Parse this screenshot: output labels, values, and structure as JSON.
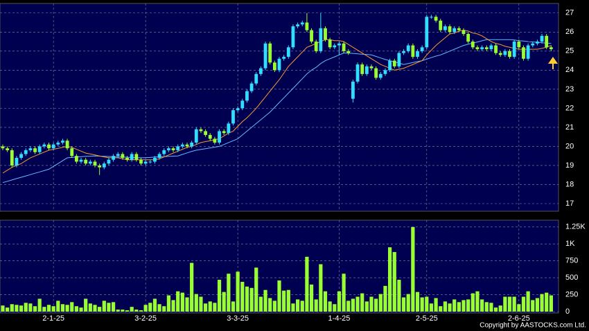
{
  "chart_data": {
    "type": "candlestick",
    "xticks": [
      {
        "value": 11,
        "label": "2-1-25"
      },
      {
        "value": 31,
        "label": "3-2-25"
      },
      {
        "value": 51,
        "label": "3-3-25"
      },
      {
        "value": 73,
        "label": "1-4-25"
      },
      {
        "value": 92,
        "label": "2-5-25"
      },
      {
        "value": 112,
        "label": "2-6-25"
      }
    ],
    "xlim": [
      -0.6,
      120.6
    ],
    "ylim": [
      16.6,
      27.5
    ],
    "yticks": [
      17,
      18,
      19,
      20,
      21,
      22,
      23,
      24,
      25,
      26,
      27
    ],
    "y2lim": [
      0,
      1350
    ],
    "y2ticks": [
      0,
      250,
      500,
      750,
      {
        "value": 1000,
        "label": "1K"
      },
      {
        "value": 1250,
        "label": "1.25K"
      }
    ],
    "grid": true,
    "up_color": "#33ddff",
    "down_color": "#99ff33",
    "volume_color": "#99ff33",
    "ma_short_color": "#ff9933",
    "ma_long_color": "#66bbff",
    "footer": "Copyright by AASTOCKS.com Ltd.",
    "open": [
      20.0,
      19.9,
      19.8,
      19.0,
      19.4,
      19.6,
      19.8,
      19.9,
      19.7,
      20.0,
      20.1,
      19.9,
      20.1,
      20.2,
      20.3,
      19.9,
      19.5,
      19.2,
      19.3,
      19.1,
      19.2,
      19.0,
      18.9,
      19.1,
      19.3,
      19.5,
      19.6,
      19.4,
      19.3,
      19.6,
      19.3,
      19.1,
      19.2,
      19.2,
      19.4,
      19.6,
      19.8,
      19.9,
      19.8,
      20.0,
      20.1,
      20.0,
      20.2,
      20.9,
      20.8,
      20.6,
      20.4,
      20.2,
      20.8,
      20.7,
      21.2,
      21.9,
      22.0,
      22.4,
      22.9,
      23.3,
      23.8,
      24.1,
      25.4,
      24.4,
      24.0,
      24.6,
      24.7,
      25.2,
      26.3,
      26.4,
      26.5,
      26.1,
      25.5,
      25.0,
      26.2,
      25.6,
      25.2,
      25.3,
      25.4,
      25.0,
      22.5,
      23.4,
      24.3,
      23.8,
      24.2,
      24.1,
      23.6,
      23.8,
      24.0,
      24.5,
      24.2,
      24.9,
      25.0,
      25.3,
      24.7,
      25.0,
      25.2,
      26.8,
      26.8,
      26.6,
      26.1,
      26.3,
      26.0,
      26.2,
      26.1,
      25.9,
      25.5,
      25.2,
      25.1,
      25.2,
      25.1,
      25.3,
      24.9,
      24.8,
      25.0,
      24.7,
      25.5,
      25.2,
      24.6,
      25.3,
      25.4,
      25.5,
      25.8,
      25.2
    ],
    "close": [
      19.9,
      19.8,
      19.0,
      19.4,
      19.6,
      19.8,
      19.9,
      19.7,
      20.0,
      20.1,
      19.9,
      20.1,
      20.2,
      20.3,
      19.9,
      19.5,
      19.2,
      19.3,
      19.1,
      19.2,
      19.0,
      18.9,
      19.1,
      19.3,
      19.5,
      19.6,
      19.4,
      19.3,
      19.6,
      19.3,
      19.1,
      19.2,
      19.2,
      19.4,
      19.6,
      19.8,
      19.9,
      19.8,
      20.0,
      20.1,
      20.0,
      20.2,
      20.9,
      20.8,
      20.6,
      20.4,
      20.2,
      20.8,
      20.7,
      21.2,
      21.9,
      22.0,
      22.4,
      22.9,
      23.3,
      23.8,
      24.1,
      25.4,
      24.4,
      24.0,
      24.6,
      24.7,
      25.2,
      26.3,
      26.4,
      26.5,
      26.1,
      25.5,
      25.0,
      26.2,
      25.6,
      25.2,
      25.3,
      25.4,
      25.0,
      24.9,
      23.4,
      24.3,
      23.8,
      24.2,
      24.1,
      23.6,
      23.8,
      24.0,
      24.5,
      24.2,
      24.9,
      25.0,
      25.3,
      24.7,
      25.0,
      25.2,
      26.8,
      26.8,
      26.6,
      26.1,
      26.3,
      26.0,
      26.2,
      26.1,
      25.9,
      25.5,
      25.2,
      25.1,
      25.2,
      25.1,
      25.3,
      24.9,
      24.8,
      25.0,
      24.7,
      25.5,
      25.2,
      24.6,
      25.3,
      25.4,
      25.5,
      25.8,
      25.2,
      25.1
    ],
    "high": [
      20.1,
      20.0,
      19.9,
      19.5,
      19.7,
      19.9,
      20.0,
      20.0,
      20.1,
      20.2,
      20.2,
      20.2,
      20.3,
      20.4,
      20.4,
      20.0,
      19.6,
      19.4,
      19.4,
      19.3,
      19.3,
      19.1,
      19.2,
      19.4,
      19.6,
      19.7,
      19.7,
      19.5,
      19.7,
      19.7,
      19.4,
      19.3,
      19.3,
      19.5,
      19.7,
      19.9,
      20.0,
      20.0,
      20.1,
      20.2,
      20.2,
      20.3,
      21.0,
      21.0,
      20.9,
      20.7,
      20.5,
      20.9,
      20.9,
      21.3,
      22.0,
      22.1,
      22.5,
      23.0,
      23.4,
      23.9,
      24.2,
      25.5,
      25.5,
      24.5,
      24.7,
      24.8,
      25.3,
      26.4,
      26.5,
      26.6,
      27.0,
      26.2,
      25.6,
      27.0,
      26.3,
      25.7,
      25.4,
      25.5,
      25.5,
      25.1,
      23.5,
      24.4,
      24.4,
      24.3,
      24.3,
      24.2,
      23.9,
      24.1,
      24.6,
      24.6,
      25.0,
      25.1,
      25.4,
      25.4,
      25.1,
      25.3,
      26.9,
      26.9,
      26.9,
      26.7,
      26.4,
      26.4,
      26.3,
      26.3,
      26.2,
      26.0,
      25.6,
      25.3,
      25.3,
      25.3,
      25.4,
      25.4,
      25.0,
      25.1,
      25.1,
      25.6,
      25.6,
      25.3,
      25.4,
      25.5,
      25.6,
      25.9,
      25.9,
      25.3
    ],
    "low": [
      19.8,
      19.7,
      18.9,
      18.9,
      19.3,
      19.5,
      19.7,
      19.6,
      19.6,
      19.9,
      19.8,
      19.8,
      20.0,
      20.1,
      19.8,
      19.4,
      19.1,
      19.1,
      19.0,
      19.0,
      18.9,
      18.5,
      18.8,
      19.0,
      19.2,
      19.4,
      19.3,
      19.2,
      19.2,
      19.2,
      19.0,
      19.0,
      19.1,
      19.1,
      19.3,
      19.5,
      19.7,
      19.7,
      19.7,
      19.9,
      19.9,
      19.9,
      20.1,
      20.7,
      20.5,
      20.3,
      20.1,
      20.1,
      20.6,
      20.6,
      21.1,
      21.8,
      21.9,
      22.3,
      22.8,
      23.2,
      23.7,
      24.0,
      24.3,
      23.9,
      23.9,
      24.5,
      24.6,
      25.1,
      26.2,
      26.3,
      26.0,
      25.4,
      24.9,
      24.9,
      25.5,
      25.1,
      25.1,
      24.8,
      24.9,
      24.8,
      22.3,
      23.3,
      23.7,
      23.7,
      24.0,
      23.5,
      23.5,
      23.7,
      23.9,
      24.1,
      24.1,
      24.8,
      24.9,
      24.6,
      24.6,
      24.9,
      25.1,
      26.7,
      26.5,
      26.0,
      26.0,
      25.9,
      25.9,
      26.0,
      25.8,
      25.4,
      25.1,
      25.0,
      25.0,
      25.0,
      25.0,
      24.8,
      24.7,
      24.7,
      24.6,
      24.6,
      25.1,
      24.5,
      24.5,
      25.2,
      25.3,
      25.4,
      25.1,
      25.0
    ],
    "ma_short": [
      18.6,
      18.75,
      18.9,
      19.0,
      19.1,
      19.25,
      19.4,
      19.5,
      19.6,
      19.7,
      19.8,
      19.85,
      19.9,
      19.95,
      20.0,
      19.95,
      19.85,
      19.75,
      19.65,
      19.6,
      19.55,
      19.5,
      19.45,
      19.4,
      19.4,
      19.4,
      19.35,
      19.3,
      19.3,
      19.3,
      19.3,
      19.3,
      19.3,
      19.3,
      19.35,
      19.45,
      19.55,
      19.65,
      19.75,
      19.85,
      19.95,
      20.0,
      20.1,
      20.2,
      20.25,
      20.3,
      20.35,
      20.4,
      20.55,
      20.7,
      20.8,
      21.05,
      21.3,
      21.5,
      21.75,
      22.0,
      22.3,
      22.6,
      22.9,
      23.2,
      23.5,
      23.85,
      24.2,
      24.45,
      24.7,
      24.95,
      25.2,
      25.3,
      25.4,
      25.5,
      25.6,
      25.6,
      25.55,
      25.55,
      25.5,
      25.35,
      25.2,
      25.05,
      24.9,
      24.75,
      24.6,
      24.45,
      24.3,
      24.2,
      24.1,
      24.0,
      24.05,
      24.1,
      24.2,
      24.3,
      24.4,
      24.5,
      24.8,
      25.05,
      25.3,
      25.5,
      25.7,
      25.9,
      25.95,
      26.05,
      26.1,
      26.05,
      25.95,
      25.9,
      25.8,
      25.65,
      25.5,
      25.4,
      25.35,
      25.25,
      25.2,
      25.15,
      25.1,
      25.1,
      25.1,
      25.1,
      25.1,
      25.15,
      25.2,
      25.3
    ],
    "ma_long": [
      18.1,
      18.17,
      18.24,
      18.31,
      18.38,
      18.45,
      18.52,
      18.59,
      18.66,
      18.73,
      18.8,
      18.95,
      19.1,
      19.25,
      19.4,
      19.42,
      19.44,
      19.46,
      19.48,
      19.49,
      19.5,
      19.49,
      19.48,
      19.47,
      19.46,
      19.45,
      19.44,
      19.43,
      19.42,
      19.41,
      19.4,
      19.41,
      19.42,
      19.44,
      19.45,
      19.46,
      19.48,
      19.49,
      19.5,
      19.58,
      19.66,
      19.74,
      19.8,
      19.84,
      19.88,
      19.92,
      19.96,
      20.0,
      20.1,
      20.2,
      20.3,
      20.4,
      20.6,
      20.8,
      21.0,
      21.2,
      21.4,
      21.6,
      21.8,
      22.05,
      22.3,
      22.55,
      22.8,
      23.05,
      23.3,
      23.55,
      23.8,
      24.0,
      24.15,
      24.35,
      24.5,
      24.6,
      24.7,
      24.8,
      24.9,
      24.9,
      24.88,
      24.86,
      24.84,
      24.82,
      24.8,
      24.72,
      24.64,
      24.56,
      24.5,
      24.43,
      24.37,
      24.3,
      24.35,
      24.4,
      24.45,
      24.5,
      24.58,
      24.66,
      24.74,
      24.8,
      24.9,
      25.0,
      25.1,
      25.2,
      25.3,
      25.36,
      25.42,
      25.48,
      25.54,
      25.6,
      25.6,
      25.6,
      25.6,
      25.6,
      25.6,
      25.58,
      25.55,
      25.53,
      25.5,
      25.48,
      25.46,
      25.44,
      25.42,
      25.4
    ],
    "volume": [
      90,
      60,
      110,
      100,
      90,
      130,
      120,
      80,
      190,
      70,
      100,
      80,
      160,
      110,
      100,
      140,
      80,
      60,
      190,
      120,
      100,
      70,
      160,
      130,
      140,
      30,
      30,
      20,
      70,
      30,
      20,
      100,
      130,
      190,
      110,
      80,
      240,
      170,
      300,
      280,
      210,
      720,
      260,
      220,
      120,
      150,
      130,
      470,
      290,
      560,
      150,
      590,
      440,
      370,
      350,
      650,
      220,
      320,
      200,
      160,
      460,
      310,
      320,
      120,
      180,
      160,
      810,
      400,
      180,
      700,
      300,
      150,
      110,
      300,
      560,
      160,
      190,
      220,
      270,
      150,
      220,
      190,
      260,
      380,
      950,
      880,
      470,
      210,
      260,
      1250,
      290,
      210,
      220,
      120,
      200,
      80,
      150,
      120,
      180,
      140,
      170,
      180,
      270,
      300,
      180,
      140,
      130,
      60,
      90,
      220,
      220,
      220,
      110,
      220,
      300,
      170,
      200,
      260,
      280,
      240
    ]
  }
}
